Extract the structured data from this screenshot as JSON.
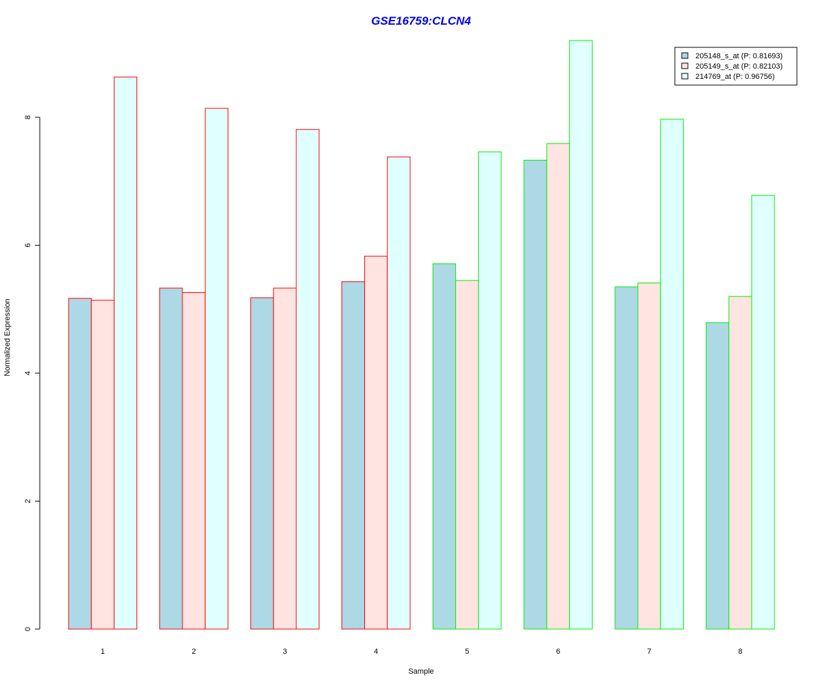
{
  "chart_data": {
    "type": "bar",
    "title": "GSE16759:CLCN4",
    "title_color": "#0000ee",
    "xlabel": "Sample",
    "ylabel": "Normalized Expression",
    "categories": [
      "1",
      "2",
      "3",
      "4",
      "5",
      "6",
      "7",
      "8"
    ],
    "ylim": [
      0,
      9.2
    ],
    "yticks": [
      0,
      2,
      4,
      6,
      8
    ],
    "grid": false,
    "legend_position": "top-right",
    "series": [
      {
        "name": "205148_s_at (P: 0.81693)",
        "fill": "#add8e6",
        "values": [
          5.17,
          5.33,
          5.18,
          5.43,
          5.71,
          7.33,
          5.35,
          4.79
        ]
      },
      {
        "name": "205149_s_at (P: 0.82103)",
        "fill": "#ffe4e1",
        "values": [
          5.14,
          5.26,
          5.33,
          5.83,
          5.45,
          7.59,
          5.41,
          5.2
        ]
      },
      {
        "name": "214769_at (P: 0.96756)",
        "fill": "#e0ffff",
        "values": [
          8.63,
          8.14,
          7.81,
          7.38,
          7.46,
          9.2,
          7.97,
          6.78
        ]
      }
    ],
    "sample_group_colors": [
      "#ff0000",
      "#ff0000",
      "#ff0000",
      "#ff0000",
      "#00ee00",
      "#00ee00",
      "#00ee00",
      "#00ee00"
    ]
  }
}
